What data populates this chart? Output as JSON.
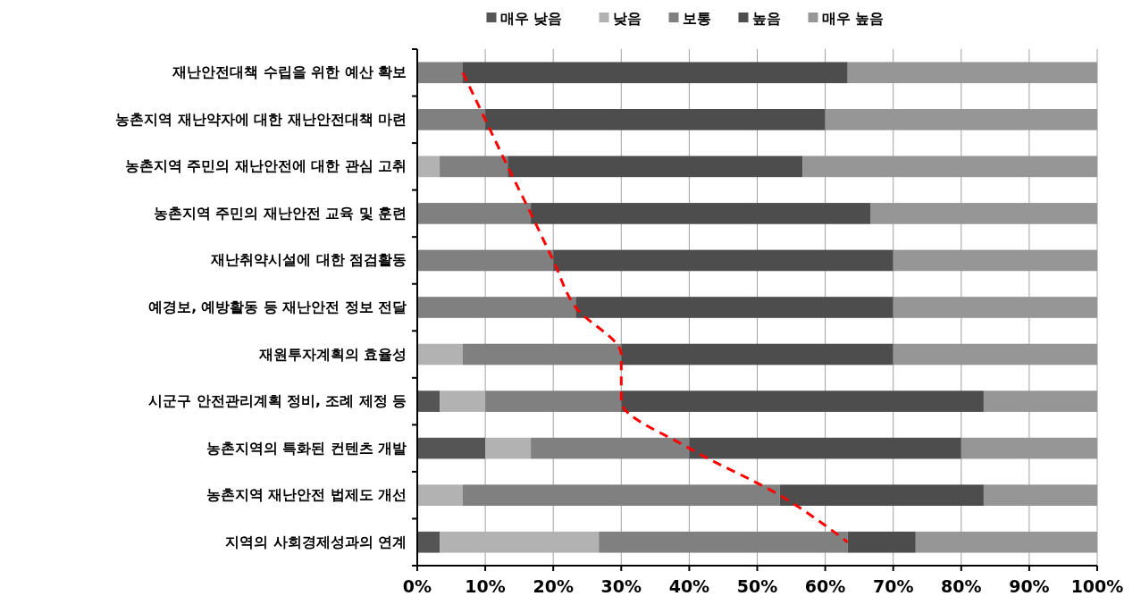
{
  "chart_data": {
    "type": "bar",
    "orientation": "horizontal",
    "stacked": true,
    "categories": [
      "재난안전대책 수립을 위한 예산 확보",
      "농촌지역 재난약자에 대한 재난안전대책 마련",
      "농촌지역 주민의 재난안전에 대한 관심 고취",
      "농촌지역 주민의 재난안전 교육 및 훈련",
      "재난취약시설에 대한 점검활동",
      "예경보, 예방활동 등 재난안전 정보 전달",
      "재원투자계획의 효율성",
      "시군구 안전관리계획 정비, 조례 제정 등",
      "농촌지역의 특화된 컨텐츠 개발",
      "농촌지역 재난안전 법제도 개선",
      "지역의 사회경제성과의 연계"
    ],
    "series": [
      {
        "name": "매우 낮음",
        "color": "#555555",
        "values": [
          0,
          0,
          0,
          0,
          0,
          0,
          0,
          3.3,
          10,
          0,
          3.3
        ]
      },
      {
        "name": "낮음",
        "color": "#b2b2b2",
        "values": [
          0,
          0,
          3.3,
          0,
          0,
          0,
          6.7,
          6.7,
          6.7,
          6.7,
          23.4
        ]
      },
      {
        "name": "보통",
        "color": "#808080",
        "values": [
          6.7,
          10,
          10,
          16.7,
          20,
          23.3,
          23.3,
          20,
          23.3,
          46.6,
          36.6
        ]
      },
      {
        "name": "높음",
        "color": "#4d4d4d",
        "values": [
          56.6,
          50,
          43.4,
          50,
          50,
          46.7,
          40,
          53.3,
          40,
          30,
          10
        ]
      },
      {
        "name": "매우 높음",
        "color": "#969696",
        "values": [
          36.7,
          40,
          43.3,
          33.3,
          30,
          30,
          30,
          16.7,
          20,
          16.7,
          26.7
        ]
      },
      {
        "type": "line",
        "color": "#ff0000",
        "line_style": "dashed",
        "values": [
          6.7,
          10,
          13.3,
          16.7,
          20,
          23.3,
          30,
          30,
          40,
          53.3,
          63.3
        ]
      }
    ],
    "xlim": [
      0,
      100
    ],
    "xticks": [
      {
        "value": 0,
        "label": "0%"
      },
      {
        "value": 10,
        "label": "10%"
      },
      {
        "value": 20,
        "label": "20%"
      },
      {
        "value": 30,
        "label": "30%"
      },
      {
        "value": 40,
        "label": "40%"
      },
      {
        "value": 50,
        "label": "50%"
      },
      {
        "value": 60,
        "label": "60%"
      },
      {
        "value": 70,
        "label": "70%"
      },
      {
        "value": 80,
        "label": "80%"
      },
      {
        "value": 90,
        "label": "90%"
      },
      {
        "value": 100,
        "label": "100%"
      }
    ],
    "grid": "x",
    "legend": "top"
  }
}
